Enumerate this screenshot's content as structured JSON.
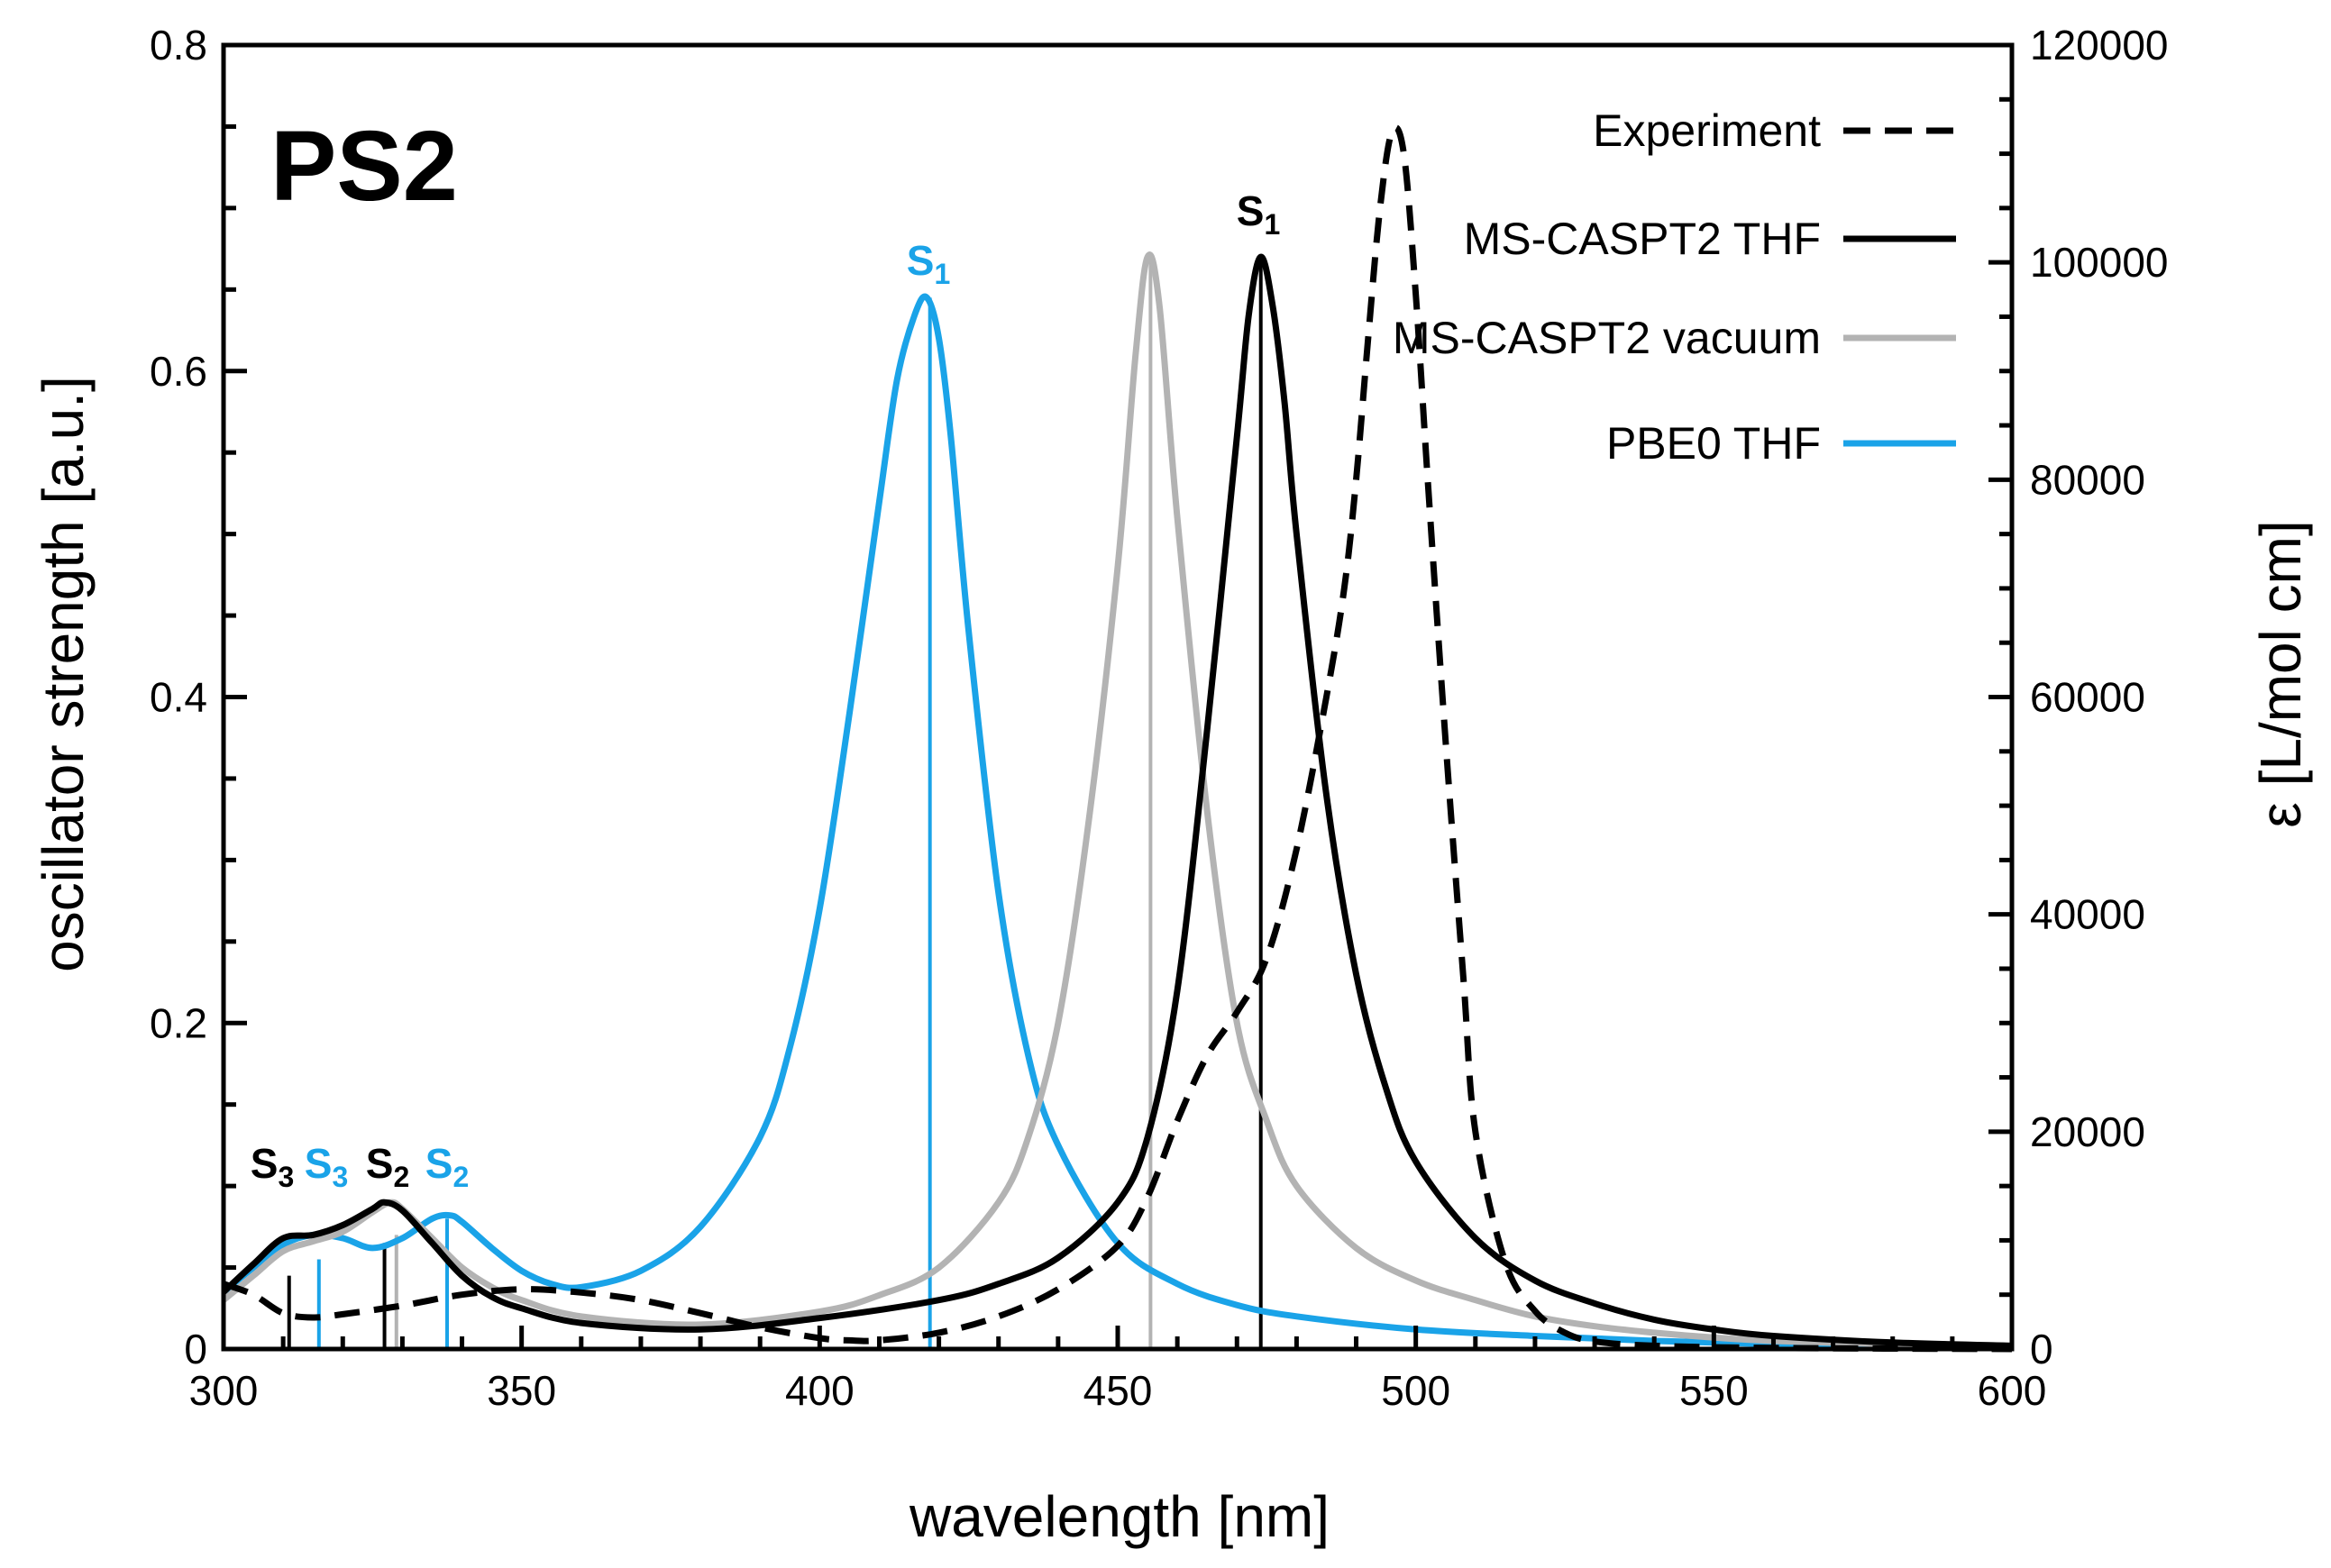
{
  "chart_data": {
    "type": "line",
    "panel_label": "PS2",
    "xlabel": "wavelength [nm]",
    "ylabel_left": "oscillator strength [a.u.]",
    "ylabel_right": "ε [L/mol cm]",
    "xlim": [
      300,
      600
    ],
    "ylim_left": [
      0,
      0.8
    ],
    "ylim_right": [
      0,
      120000
    ],
    "x_ticks": [
      300,
      350,
      400,
      450,
      500,
      550,
      600
    ],
    "y_ticks_left": [
      {
        "value": 0,
        "label": "0"
      },
      {
        "value": 0.2,
        "label": "0.2"
      },
      {
        "value": 0.4,
        "label": "0.4"
      },
      {
        "value": 0.6,
        "label": "0.6"
      },
      {
        "value": 0.8,
        "label": "0.8"
      }
    ],
    "y_ticks_right": [
      0,
      20000,
      40000,
      60000,
      80000,
      100000,
      120000
    ],
    "colors": {
      "experiment": "#000000",
      "caspt2_thf": "#000000",
      "caspt2_vacuum": "#b3b3b3",
      "pbe0_thf": "#1aa3e8"
    },
    "legend": [
      {
        "label": "Experiment",
        "series": "experiment"
      },
      {
        "label": "MS-CASPT2 THF",
        "series": "caspt2_thf"
      },
      {
        "label": "MS-CASPT2 vacuum",
        "series": "caspt2_vacuum"
      },
      {
        "label": "PBE0 THF",
        "series": "pbe0_thf"
      }
    ],
    "series": [
      {
        "id": "experiment",
        "name": "Experiment",
        "axis": "right",
        "style": "dashed",
        "x": [
          300,
          305,
          310,
          315,
          320,
          330,
          340,
          350,
          360,
          370,
          380,
          390,
          400,
          405,
          410,
          420,
          430,
          440,
          450,
          455,
          460,
          465,
          470,
          475,
          480,
          485,
          488,
          490,
          492,
          494,
          496,
          498,
          500,
          502,
          505,
          508,
          510,
          515,
          520,
          525,
          530,
          540,
          560,
          600
        ],
        "y": [
          6000,
          5000,
          3300,
          2900,
          3200,
          4000,
          5000,
          5500,
          5200,
          4500,
          3300,
          2000,
          1000,
          800,
          800,
          1500,
          3000,
          5500,
          9500,
          14000,
          21000,
          27000,
          31000,
          36000,
          46000,
          60000,
          70000,
          80000,
          93000,
          105000,
          112000,
          110000,
          97000,
          80000,
          56000,
          34000,
          20000,
          8000,
          3500,
          1500,
          700,
          300,
          100,
          0
        ]
      },
      {
        "id": "caspt2_thf",
        "name": "MS-CASPT2 THF",
        "axis": "left",
        "style": "solid",
        "x": [
          300,
          305,
          310,
          315,
          320,
          325,
          327,
          330,
          335,
          340,
          345,
          350,
          360,
          380,
          400,
          420,
          430,
          440,
          450,
          455,
          460,
          465,
          470,
          472,
          474,
          476,
          478,
          480,
          485,
          490,
          495,
          500,
          510,
          520,
          530,
          540,
          550,
          560,
          580,
          600
        ],
        "y": [
          0.035,
          0.052,
          0.068,
          0.07,
          0.076,
          0.086,
          0.09,
          0.085,
          0.065,
          0.045,
          0.032,
          0.025,
          0.016,
          0.012,
          0.019,
          0.03,
          0.04,
          0.056,
          0.09,
          0.13,
          0.22,
          0.38,
          0.56,
          0.635,
          0.67,
          0.64,
          0.58,
          0.5,
          0.34,
          0.23,
          0.16,
          0.115,
          0.068,
          0.042,
          0.028,
          0.018,
          0.012,
          0.008,
          0.004,
          0.002
        ]
      },
      {
        "id": "caspt2_vacuum",
        "name": "MS-CASPT2 vacuum",
        "axis": "left",
        "style": "solid",
        "x": [
          300,
          305,
          310,
          315,
          320,
          325,
          328,
          330,
          335,
          340,
          345,
          350,
          360,
          380,
          400,
          410,
          420,
          430,
          435,
          440,
          445,
          450,
          453,
          455,
          457,
          460,
          465,
          470,
          475,
          480,
          490,
          500,
          510,
          520,
          530,
          540,
          550,
          560,
          580,
          600
        ],
        "y": [
          0.03,
          0.045,
          0.06,
          0.066,
          0.072,
          0.084,
          0.09,
          0.086,
          0.068,
          0.05,
          0.038,
          0.03,
          0.02,
          0.015,
          0.023,
          0.033,
          0.05,
          0.09,
          0.13,
          0.2,
          0.32,
          0.48,
          0.61,
          0.67,
          0.64,
          0.51,
          0.33,
          0.2,
          0.14,
          0.1,
          0.062,
          0.042,
          0.03,
          0.02,
          0.014,
          0.01,
          0.007,
          0.005,
          0.003,
          0.002
        ]
      },
      {
        "id": "pbe0_thf",
        "name": "PBE0 THF",
        "axis": "left",
        "style": "solid",
        "x": [
          300,
          305,
          310,
          315,
          320,
          325,
          330,
          335,
          338,
          340,
          345,
          350,
          355,
          360,
          370,
          380,
          390,
          395,
          400,
          405,
          410,
          413,
          416,
          418,
          420,
          422,
          425,
          430,
          435,
          440,
          450,
          460,
          470,
          480,
          500,
          520,
          540,
          560,
          580,
          600
        ],
        "y": [
          0.035,
          0.05,
          0.064,
          0.07,
          0.068,
          0.062,
          0.068,
          0.08,
          0.082,
          0.078,
          0.062,
          0.048,
          0.04,
          0.038,
          0.048,
          0.075,
          0.13,
          0.185,
          0.27,
          0.39,
          0.52,
          0.595,
          0.635,
          0.645,
          0.62,
          0.56,
          0.44,
          0.28,
          0.18,
          0.125,
          0.065,
          0.04,
          0.027,
          0.02,
          0.012,
          0.008,
          0.005,
          0.003,
          0.002,
          0.001
        ]
      }
    ],
    "sticks": [
      {
        "series": "pbe0_thf",
        "state": "S",
        "index": "1",
        "x": 418.5,
        "f": 0.645
      },
      {
        "series": "caspt2_vacuum",
        "state": "",
        "index": "",
        "x": 455.5,
        "f": 0.67
      },
      {
        "series": "caspt2_thf",
        "state": "S",
        "index": "1",
        "x": 474,
        "f": 0.67
      },
      {
        "series": "caspt2_thf",
        "state": "S",
        "index": "3",
        "x": 311,
        "f": 0.045
      },
      {
        "series": "pbe0_thf",
        "state": "S",
        "index": "3",
        "x": 316,
        "f": 0.055
      },
      {
        "series": "caspt2_thf",
        "state": "S",
        "index": "2",
        "x": 327,
        "f": 0.065
      },
      {
        "series": "caspt2_vacuum",
        "state": "",
        "index": "",
        "x": 329,
        "f": 0.07
      },
      {
        "series": "pbe0_thf",
        "state": "S",
        "index": "2",
        "x": 337.5,
        "f": 0.08
      }
    ]
  }
}
